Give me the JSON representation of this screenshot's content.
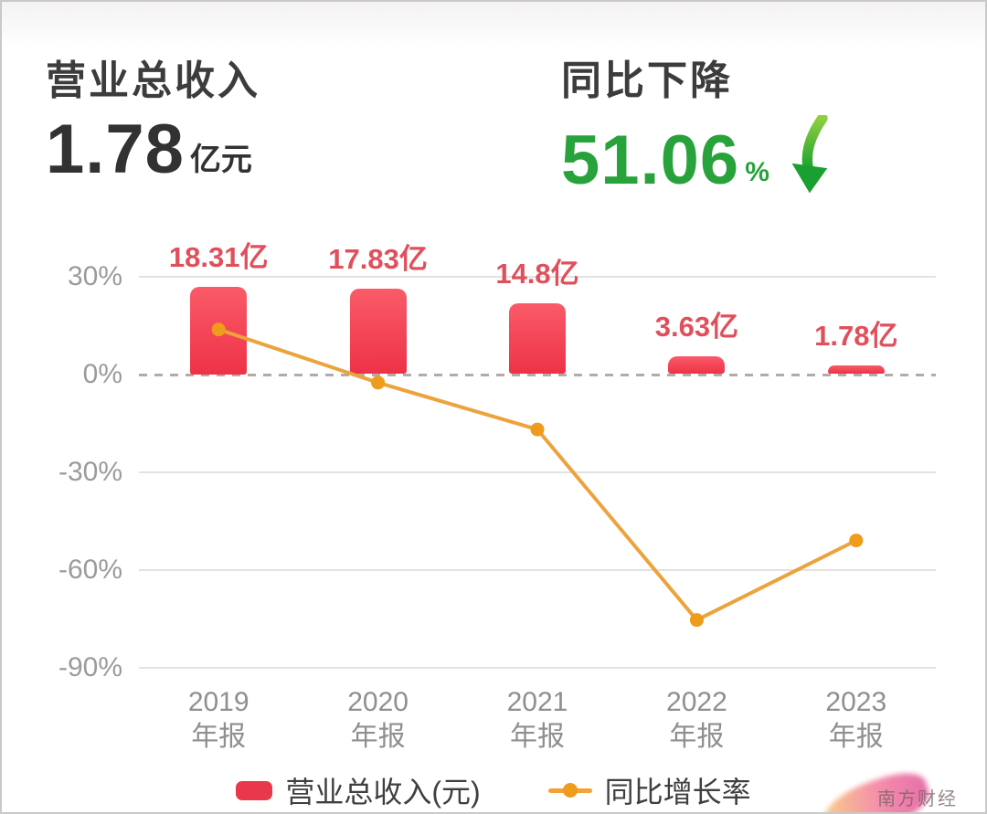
{
  "header": {
    "left": {
      "title": "营业总收入",
      "value": "1.78",
      "unit": "亿元"
    },
    "right": {
      "title": "同比下降",
      "value": "51.06",
      "unit": "%",
      "icon": "green-down-arrow",
      "accent_color": "#28a23a"
    }
  },
  "chart_data": {
    "type": "combo-bar-line",
    "categories": [
      "2019",
      "2020",
      "2021",
      "2022",
      "2023"
    ],
    "category_sublabel": "年报",
    "series": [
      {
        "name": "营业总收入(元)",
        "type": "bar",
        "unit": "亿",
        "values": [
          18.31,
          17.83,
          14.8,
          3.63,
          1.78
        ],
        "labels": [
          "18.31亿",
          "17.83亿",
          "14.8亿",
          "3.63亿",
          "1.78亿"
        ],
        "color": "#ee3247"
      },
      {
        "name": "同比增长率",
        "type": "line",
        "unit": "%",
        "values": [
          13.7,
          -2.62,
          -16.99,
          -75.47,
          -51.06
        ],
        "color": "#eca33c",
        "point_color": "#ef9b1b"
      }
    ],
    "y_axis": {
      "ticks": [
        30,
        0,
        -30,
        -60,
        -90
      ],
      "tick_labels": [
        "30%",
        "0%",
        "-30%",
        "-60%",
        "-90%"
      ],
      "unit": "%",
      "range": [
        -90,
        30
      ],
      "zero_line_dashed": true
    },
    "grid": true,
    "legend_position": "bottom",
    "legend": [
      {
        "label": "营业总收入(元)",
        "color": "#e9384b",
        "marker": "rounded-rect"
      },
      {
        "label": "同比增长率",
        "color": "#f2a237",
        "marker": "line-dot"
      }
    ]
  },
  "watermark": {
    "text": "南方财经"
  }
}
